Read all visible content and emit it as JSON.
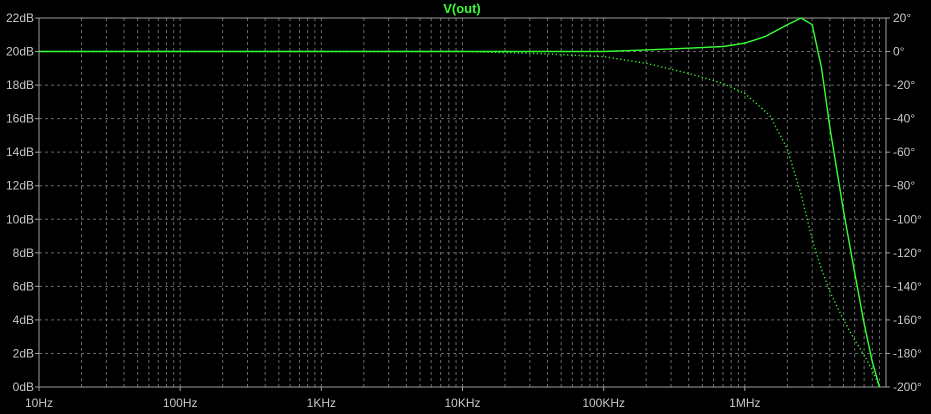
{
  "chart_data": {
    "type": "line",
    "title": "V(out)",
    "xscale": "log",
    "xlim": [
      10,
      10000000
    ],
    "ylim": [
      0,
      22
    ],
    "y2lim": [
      -200,
      20
    ],
    "grid": true,
    "x_ticks": [
      {
        "value": 10,
        "label": "10Hz"
      },
      {
        "value": 100,
        "label": "100Hz"
      },
      {
        "value": 1000,
        "label": "1KHz"
      },
      {
        "value": 10000,
        "label": "10KHz"
      },
      {
        "value": 100000,
        "label": "100KHz"
      },
      {
        "value": 1000000,
        "label": "1MHz"
      }
    ],
    "y_ticks": [
      {
        "value": 0,
        "label": "0dB"
      },
      {
        "value": 2,
        "label": "2dB"
      },
      {
        "value": 4,
        "label": "4dB"
      },
      {
        "value": 6,
        "label": "6dB"
      },
      {
        "value": 8,
        "label": "8dB"
      },
      {
        "value": 10,
        "label": "10dB"
      },
      {
        "value": 12,
        "label": "12dB"
      },
      {
        "value": 14,
        "label": "14dB"
      },
      {
        "value": 16,
        "label": "16dB"
      },
      {
        "value": 18,
        "label": "18dB"
      },
      {
        "value": 20,
        "label": "20dB"
      },
      {
        "value": 22,
        "label": "22dB"
      }
    ],
    "y2_ticks": [
      {
        "value": 20,
        "label": "20°"
      },
      {
        "value": 0,
        "label": "0°"
      },
      {
        "value": -20,
        "label": "-20°"
      },
      {
        "value": -40,
        "label": "-40°"
      },
      {
        "value": -60,
        "label": "-60°"
      },
      {
        "value": -80,
        "label": "-80°"
      },
      {
        "value": -100,
        "label": "-100°"
      },
      {
        "value": -120,
        "label": "-120°"
      },
      {
        "value": -140,
        "label": "-140°"
      },
      {
        "value": -160,
        "label": "-160°"
      },
      {
        "value": -180,
        "label": "-180°"
      },
      {
        "value": -200,
        "label": "-200°"
      }
    ],
    "series": [
      {
        "axis": "left",
        "style": "solid",
        "color": "#33ff33",
        "x": [
          10,
          1000,
          10000,
          100000,
          200000,
          400000,
          700000,
          1000000,
          1400000,
          2000000,
          2500000,
          3000000,
          3500000,
          4000000,
          5000000,
          6000000,
          7000000,
          8000000,
          9000000
        ],
        "y": [
          20.0,
          20.0,
          20.0,
          20.0,
          20.1,
          20.2,
          20.3,
          20.5,
          20.9,
          21.6,
          22.0,
          21.6,
          19.0,
          15.5,
          10.5,
          6.8,
          3.8,
          1.5,
          0.0
        ]
      },
      {
        "axis": "right",
        "style": "dotted",
        "color": "#33ff33",
        "x": [
          10,
          10000,
          30000,
          100000,
          200000,
          400000,
          700000,
          1000000,
          1500000,
          2000000,
          2500000,
          3000000,
          3500000,
          4000000,
          5000000,
          6000000,
          7000000,
          8000000,
          9000000
        ],
        "y": [
          0,
          0,
          -1,
          -3,
          -7,
          -13,
          -19,
          -25,
          -38,
          -58,
          -85,
          -112,
          -130,
          -143,
          -160,
          -172,
          -181,
          -190,
          -200
        ]
      }
    ]
  }
}
